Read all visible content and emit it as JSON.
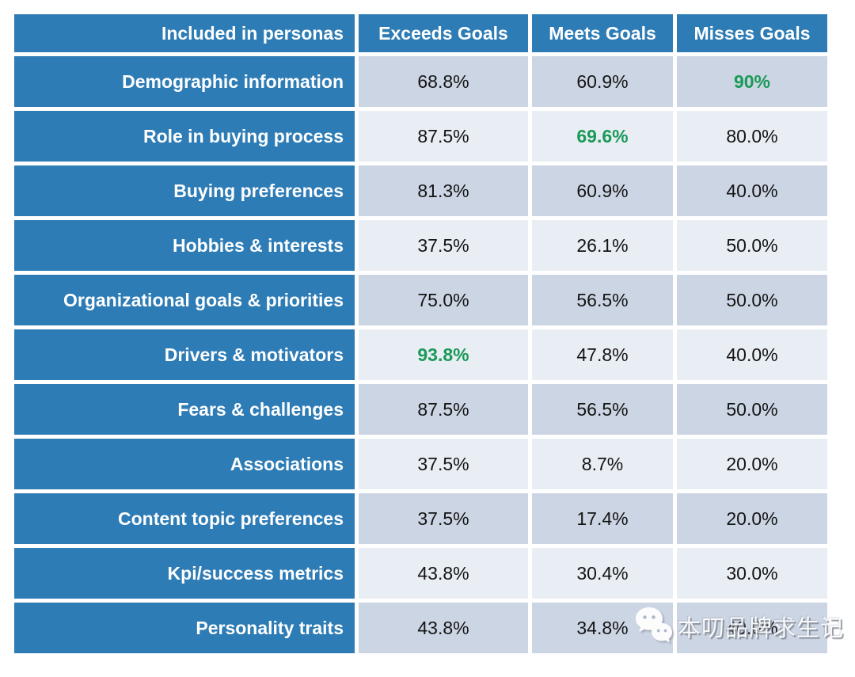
{
  "colors": {
    "accent-blue": "#2E7CB5",
    "row-dark": "#CBD5E3",
    "row-light": "#E9EDF4",
    "highlight-green": "#1A9A58"
  },
  "chart_data": {
    "type": "table",
    "title": "Included in personas",
    "columns": [
      "Included in personas",
      "Exceeds Goals",
      "Meets Goals",
      "Misses Goals"
    ],
    "rows": [
      {
        "label": "Demographic information",
        "values": [
          "68.8%",
          "60.9%",
          "90%"
        ],
        "highlight_col": 2
      },
      {
        "label": "Role in buying process",
        "values": [
          "87.5%",
          "69.6%",
          "80.0%"
        ],
        "highlight_col": 1
      },
      {
        "label": "Buying preferences",
        "values": [
          "81.3%",
          "60.9%",
          "40.0%"
        ],
        "highlight_col": null
      },
      {
        "label": "Hobbies & interests",
        "values": [
          "37.5%",
          "26.1%",
          "50.0%"
        ],
        "highlight_col": null
      },
      {
        "label": "Organizational goals & priorities",
        "values": [
          "75.0%",
          "56.5%",
          "50.0%"
        ],
        "highlight_col": null
      },
      {
        "label": "Drivers & motivators",
        "values": [
          "93.8%",
          "47.8%",
          "40.0%"
        ],
        "highlight_col": 0
      },
      {
        "label": "Fears & challenges",
        "values": [
          "87.5%",
          "56.5%",
          "50.0%"
        ],
        "highlight_col": null
      },
      {
        "label": "Associations",
        "values": [
          "37.5%",
          "8.7%",
          "20.0%"
        ],
        "highlight_col": null
      },
      {
        "label": "Content topic preferences",
        "values": [
          "37.5%",
          "17.4%",
          "20.0%"
        ],
        "highlight_col": null
      },
      {
        "label": "Kpi/success metrics",
        "values": [
          "43.8%",
          "30.4%",
          "30.0%"
        ],
        "highlight_col": null
      },
      {
        "label": "Personality traits",
        "values": [
          "43.8%",
          "34.8%",
          "40.0%"
        ],
        "highlight_col": null
      }
    ]
  },
  "watermark": {
    "icon": "wechat-icon",
    "text": "本叨品牌求生记"
  }
}
